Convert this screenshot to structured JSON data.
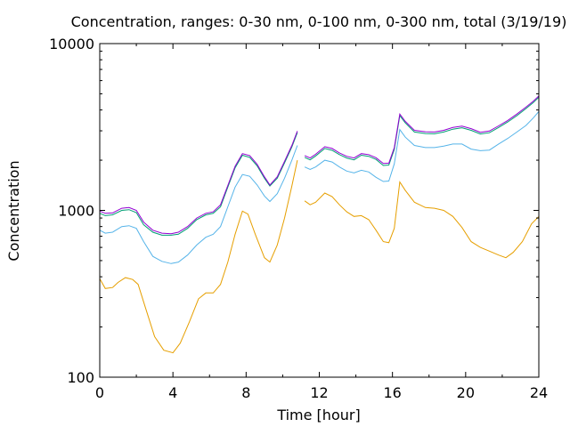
{
  "chart_data": {
    "type": "line",
    "title": "Concentration, ranges: 0-30 nm, 0-100 nm, 0-300 nm, total (3/19/19)",
    "xlabel": "Time [hour]",
    "ylabel": "Concentration",
    "xlim": [
      0,
      24
    ],
    "ylim": [
      100,
      10000
    ],
    "yscale": "log",
    "grid": false,
    "legend": "none",
    "xticks": [
      0,
      4,
      8,
      12,
      16,
      20,
      24
    ],
    "xtick_labels": [
      "0",
      "4",
      "8",
      "12",
      "16",
      "20",
      "24"
    ],
    "yticks": [
      100,
      1000,
      10000
    ],
    "ytick_labels": [
      "100",
      "1000",
      "10000"
    ],
    "series": [
      {
        "color": "#e69f00",
        "segments": [
          [
            [
              0,
              390
            ],
            [
              0.3,
              340
            ],
            [
              0.7,
              345
            ],
            [
              1.0,
              370
            ],
            [
              1.4,
              395
            ],
            [
              1.8,
              385
            ],
            [
              2.1,
              360
            ],
            [
              2.5,
              260
            ],
            [
              3.0,
              175
            ],
            [
              3.5,
              145
            ],
            [
              4.0,
              140
            ],
            [
              4.4,
              160
            ],
            [
              4.9,
              215
            ],
            [
              5.4,
              295
            ],
            [
              5.8,
              320
            ],
            [
              6.2,
              320
            ],
            [
              6.6,
              360
            ],
            [
              7.0,
              490
            ],
            [
              7.4,
              720
            ],
            [
              7.8,
              990
            ],
            [
              8.1,
              950
            ],
            [
              8.5,
              720
            ],
            [
              9.0,
              520
            ],
            [
              9.3,
              490
            ],
            [
              9.7,
              620
            ],
            [
              10.1,
              900
            ],
            [
              10.5,
              1400
            ],
            [
              10.8,
              2000
            ]
          ],
          [
            [
              11.2,
              1140
            ],
            [
              11.5,
              1080
            ],
            [
              11.8,
              1120
            ],
            [
              12.3,
              1270
            ],
            [
              12.7,
              1210
            ],
            [
              13.1,
              1080
            ],
            [
              13.5,
              980
            ],
            [
              13.9,
              920
            ],
            [
              14.3,
              930
            ],
            [
              14.7,
              880
            ],
            [
              15.1,
              760
            ],
            [
              15.5,
              650
            ],
            [
              15.8,
              640
            ],
            [
              16.1,
              780
            ],
            [
              16.4,
              1480
            ],
            [
              16.7,
              1320
            ],
            [
              17.2,
              1120
            ],
            [
              17.8,
              1040
            ],
            [
              18.3,
              1030
            ],
            [
              18.8,
              1000
            ],
            [
              19.3,
              920
            ],
            [
              19.8,
              790
            ],
            [
              20.3,
              650
            ],
            [
              20.8,
              600
            ],
            [
              21.3,
              570
            ],
            [
              21.8,
              540
            ],
            [
              22.2,
              520
            ],
            [
              22.6,
              560
            ],
            [
              23.1,
              650
            ],
            [
              23.6,
              830
            ],
            [
              24,
              920
            ]
          ]
        ]
      },
      {
        "color": "#56b4e9",
        "segments": [
          [
            [
              0,
              760
            ],
            [
              0.3,
              730
            ],
            [
              0.7,
              740
            ],
            [
              1.2,
              800
            ],
            [
              1.6,
              810
            ],
            [
              2.0,
              780
            ],
            [
              2.4,
              650
            ],
            [
              2.9,
              530
            ],
            [
              3.4,
              495
            ],
            [
              3.9,
              480
            ],
            [
              4.3,
              490
            ],
            [
              4.8,
              540
            ],
            [
              5.3,
              620
            ],
            [
              5.8,
              690
            ],
            [
              6.2,
              720
            ],
            [
              6.6,
              800
            ],
            [
              7.0,
              1050
            ],
            [
              7.4,
              1380
            ],
            [
              7.8,
              1640
            ],
            [
              8.2,
              1600
            ],
            [
              8.6,
              1420
            ],
            [
              9.0,
              1220
            ],
            [
              9.3,
              1130
            ],
            [
              9.7,
              1260
            ],
            [
              10.1,
              1560
            ],
            [
              10.5,
              2000
            ],
            [
              10.8,
              2450
            ]
          ],
          [
            [
              11.2,
              1820
            ],
            [
              11.5,
              1760
            ],
            [
              11.8,
              1820
            ],
            [
              12.3,
              2000
            ],
            [
              12.7,
              1950
            ],
            [
              13.1,
              1820
            ],
            [
              13.5,
              1720
            ],
            [
              13.9,
              1680
            ],
            [
              14.3,
              1740
            ],
            [
              14.7,
              1700
            ],
            [
              15.1,
              1580
            ],
            [
              15.5,
              1490
            ],
            [
              15.8,
              1500
            ],
            [
              16.1,
              1900
            ],
            [
              16.4,
              3050
            ],
            [
              16.7,
              2750
            ],
            [
              17.2,
              2450
            ],
            [
              17.8,
              2380
            ],
            [
              18.3,
              2380
            ],
            [
              18.8,
              2430
            ],
            [
              19.3,
              2500
            ],
            [
              19.8,
              2500
            ],
            [
              20.3,
              2330
            ],
            [
              20.8,
              2280
            ],
            [
              21.3,
              2300
            ],
            [
              21.8,
              2500
            ],
            [
              22.3,
              2700
            ],
            [
              22.8,
              2950
            ],
            [
              23.3,
              3230
            ],
            [
              23.7,
              3580
            ],
            [
              24,
              3920
            ]
          ]
        ]
      },
      {
        "color": "#009e73",
        "segments": [
          [
            [
              0,
              960
            ],
            [
              0.3,
              930
            ],
            [
              0.7,
              940
            ],
            [
              1.2,
              1000
            ],
            [
              1.6,
              1010
            ],
            [
              2.0,
              970
            ],
            [
              2.4,
              820
            ],
            [
              2.9,
              740
            ],
            [
              3.4,
              710
            ],
            [
              3.9,
              710
            ],
            [
              4.3,
              720
            ],
            [
              4.8,
              780
            ],
            [
              5.3,
              880
            ],
            [
              5.8,
              940
            ],
            [
              6.2,
              960
            ],
            [
              6.6,
              1050
            ],
            [
              7.0,
              1380
            ],
            [
              7.4,
              1800
            ],
            [
              7.8,
              2140
            ],
            [
              8.2,
              2080
            ],
            [
              8.6,
              1850
            ],
            [
              9.0,
              1560
            ],
            [
              9.3,
              1400
            ],
            [
              9.7,
              1560
            ],
            [
              10.1,
              1930
            ],
            [
              10.5,
              2400
            ],
            [
              10.8,
              2930
            ]
          ],
          [
            [
              11.2,
              2080
            ],
            [
              11.5,
              2010
            ],
            [
              11.8,
              2120
            ],
            [
              12.3,
              2350
            ],
            [
              12.7,
              2290
            ],
            [
              13.1,
              2160
            ],
            [
              13.5,
              2060
            ],
            [
              13.9,
              2010
            ],
            [
              14.3,
              2140
            ],
            [
              14.7,
              2110
            ],
            [
              15.1,
              2020
            ],
            [
              15.5,
              1860
            ],
            [
              15.8,
              1870
            ],
            [
              16.1,
              2320
            ],
            [
              16.4,
              3700
            ],
            [
              16.7,
              3350
            ],
            [
              17.2,
              2950
            ],
            [
              17.8,
              2890
            ],
            [
              18.3,
              2880
            ],
            [
              18.8,
              2950
            ],
            [
              19.3,
              3070
            ],
            [
              19.8,
              3130
            ],
            [
              20.3,
              3020
            ],
            [
              20.8,
              2870
            ],
            [
              21.3,
              2920
            ],
            [
              21.8,
              3140
            ],
            [
              22.3,
              3390
            ],
            [
              22.8,
              3700
            ],
            [
              23.3,
              4080
            ],
            [
              23.7,
              4430
            ],
            [
              24,
              4770
            ]
          ]
        ]
      },
      {
        "color": "#9400d3",
        "segments": [
          [
            [
              0,
              990
            ],
            [
              0.3,
              960
            ],
            [
              0.7,
              965
            ],
            [
              1.2,
              1030
            ],
            [
              1.6,
              1040
            ],
            [
              2.0,
              1000
            ],
            [
              2.4,
              850
            ],
            [
              2.9,
              760
            ],
            [
              3.4,
              730
            ],
            [
              3.9,
              725
            ],
            [
              4.3,
              740
            ],
            [
              4.8,
              800
            ],
            [
              5.3,
              900
            ],
            [
              5.8,
              960
            ],
            [
              6.2,
              980
            ],
            [
              6.6,
              1080
            ],
            [
              7.0,
              1410
            ],
            [
              7.4,
              1840
            ],
            [
              7.8,
              2190
            ],
            [
              8.2,
              2130
            ],
            [
              8.6,
              1890
            ],
            [
              9.0,
              1590
            ],
            [
              9.3,
              1420
            ],
            [
              9.7,
              1590
            ],
            [
              10.1,
              1970
            ],
            [
              10.5,
              2450
            ],
            [
              10.8,
              2990
            ]
          ],
          [
            [
              11.2,
              2130
            ],
            [
              11.5,
              2060
            ],
            [
              11.8,
              2170
            ],
            [
              12.3,
              2410
            ],
            [
              12.7,
              2350
            ],
            [
              13.1,
              2210
            ],
            [
              13.5,
              2110
            ],
            [
              13.9,
              2060
            ],
            [
              14.3,
              2190
            ],
            [
              14.7,
              2160
            ],
            [
              15.1,
              2070
            ],
            [
              15.5,
              1910
            ],
            [
              15.8,
              1920
            ],
            [
              16.1,
              2380
            ],
            [
              16.4,
              3780
            ],
            [
              16.7,
              3420
            ],
            [
              17.2,
              3020
            ],
            [
              17.8,
              2960
            ],
            [
              18.3,
              2950
            ],
            [
              18.8,
              3020
            ],
            [
              19.3,
              3140
            ],
            [
              19.8,
              3200
            ],
            [
              20.3,
              3090
            ],
            [
              20.8,
              2940
            ],
            [
              21.3,
              2990
            ],
            [
              21.8,
              3210
            ],
            [
              22.3,
              3460
            ],
            [
              22.8,
              3780
            ],
            [
              23.3,
              4160
            ],
            [
              23.7,
              4520
            ],
            [
              24,
              4850
            ]
          ]
        ]
      }
    ]
  }
}
